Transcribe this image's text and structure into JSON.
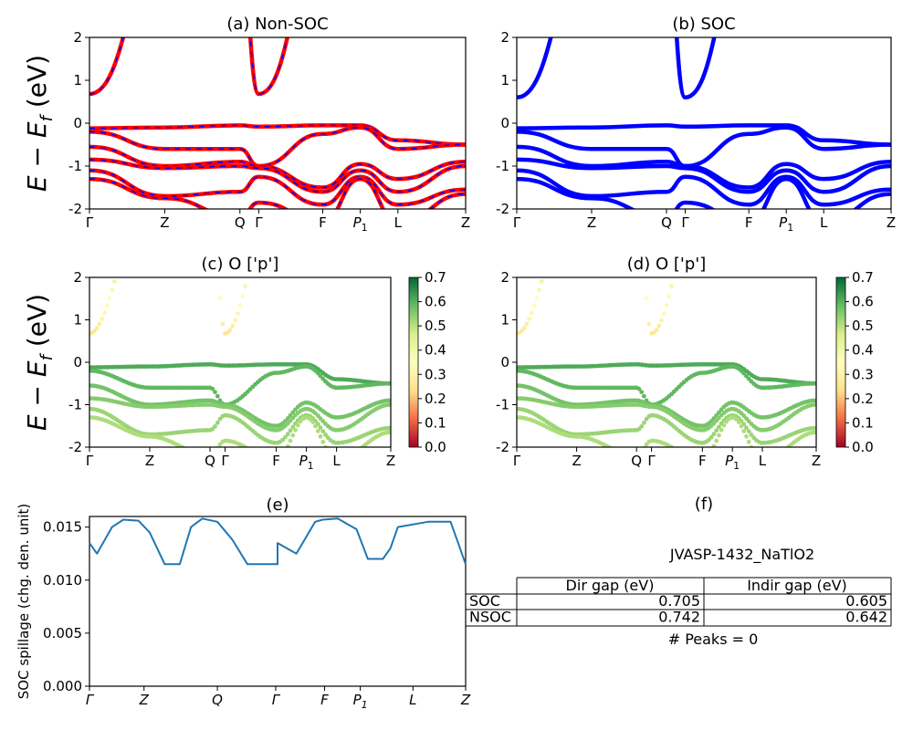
{
  "band_labels": [
    "Γ",
    "Z",
    "Q",
    "Γ",
    "F",
    "P1",
    "L",
    "Z"
  ],
  "colorbar": {
    "ticks": [
      "0.0",
      "0.1",
      "0.2",
      "0.3",
      "0.4",
      "0.5",
      "0.6",
      "0.7"
    ],
    "colormap": "RdYlGn",
    "colors": [
      "#a50026",
      "#f46d43",
      "#fee08b",
      "#ffffbf",
      "#d9ef8b",
      "#66bd63",
      "#006837"
    ]
  },
  "ylabel_bands": "E − E_f (eV)",
  "chart_data": [
    {
      "type": "line",
      "title": "(a) Non-SOC",
      "ylabel": "E − E_f (eV)",
      "ylim": [
        -2,
        2
      ],
      "yticks": [
        -2,
        -1,
        0,
        1,
        2
      ],
      "kpath": [
        "Γ",
        "Z",
        "Q",
        "Γ",
        "F",
        "P1",
        "L",
        "Z"
      ],
      "kpath_positions": [
        0,
        0.2,
        0.4,
        0.45,
        0.62,
        0.72,
        0.82,
        1.0
      ],
      "colors": {
        "non_soc": "#ff0000",
        "soc_overlay": "#0000ff"
      },
      "series": [
        {
          "values_at_path_points": [
            0.68,
            4.0,
            4.0,
            4.0,
            4.0,
            4.0,
            4.0,
            4.0
          ]
        },
        {
          "values_at_path_points": [
            4.0,
            4.0,
            4.0,
            0.68,
            4.0,
            4.0,
            4.0,
            4.0
          ]
        },
        {
          "values_at_path_points": [
            -0.12,
            -0.1,
            -0.05,
            -0.08,
            -0.05,
            -0.05,
            -0.4,
            -0.5
          ]
        },
        {
          "values_at_path_points": [
            -0.2,
            -0.6,
            -0.6,
            -1.0,
            -0.25,
            -0.1,
            -0.6,
            -0.5
          ]
        },
        {
          "values_at_path_points": [
            -0.55,
            -1.0,
            -0.9,
            -1.0,
            -1.5,
            -0.95,
            -1.3,
            -0.9
          ]
        },
        {
          "values_at_path_points": [
            -0.85,
            -1.05,
            -1.0,
            -1.05,
            -1.6,
            -1.1,
            -1.6,
            -1.0
          ]
        },
        {
          "values_at_path_points": [
            -1.1,
            -1.7,
            -1.6,
            -1.25,
            -1.9,
            -1.25,
            -1.9,
            -1.55
          ]
        },
        {
          "values_at_path_points": [
            -1.3,
            -1.75,
            -2.2,
            -1.85,
            -2.3,
            -1.3,
            -2.3,
            -1.65
          ]
        }
      ]
    },
    {
      "type": "line",
      "title": "(b) SOC",
      "ylim": [
        -2,
        2
      ],
      "yticks": [
        -2,
        -1,
        0,
        1,
        2
      ],
      "kpath": [
        "Γ",
        "Z",
        "Q",
        "Γ",
        "F",
        "P1",
        "L",
        "Z"
      ],
      "color": "#0000ff",
      "series": [
        {
          "values_at_path_points": [
            0.6,
            4.0,
            4.0,
            4.0,
            4.0,
            4.0,
            4.0,
            4.0
          ]
        },
        {
          "values_at_path_points": [
            4.0,
            4.0,
            4.0,
            0.6,
            4.0,
            4.0,
            4.0,
            4.0
          ]
        },
        {
          "values_at_path_points": [
            -0.12,
            -0.1,
            -0.05,
            -0.08,
            -0.05,
            -0.05,
            -0.4,
            -0.5
          ]
        },
        {
          "values_at_path_points": [
            -0.2,
            -0.6,
            -0.6,
            -1.0,
            -0.25,
            -0.1,
            -0.6,
            -0.5
          ]
        },
        {
          "values_at_path_points": [
            -0.55,
            -1.0,
            -0.9,
            -1.0,
            -1.5,
            -0.95,
            -1.3,
            -0.9
          ]
        },
        {
          "values_at_path_points": [
            -0.85,
            -1.05,
            -1.0,
            -1.05,
            -1.6,
            -1.1,
            -1.6,
            -1.0
          ]
        },
        {
          "values_at_path_points": [
            -1.1,
            -1.7,
            -1.6,
            -1.25,
            -1.9,
            -1.25,
            -1.9,
            -1.55
          ]
        },
        {
          "values_at_path_points": [
            -1.3,
            -1.75,
            -2.2,
            -1.85,
            -2.3,
            -1.3,
            -2.3,
            -1.65
          ]
        }
      ]
    },
    {
      "type": "scatter",
      "title": "(c)  O ['p']",
      "ylabel": "E − E_f (eV)",
      "ylim": [
        -2,
        2
      ],
      "colorbar_range": [
        0.0,
        0.7
      ],
      "description_by_energy": {
        "conduction_bands_weight": 0.25,
        "valence_bands_weight": 0.65
      }
    },
    {
      "type": "scatter",
      "title": "(d) O ['p']",
      "ylim": [
        -2,
        2
      ],
      "colorbar_range": [
        0.0,
        0.7
      ],
      "description_by_energy": {
        "conduction_bands_weight": 0.25,
        "valence_bands_weight": 0.65
      }
    },
    {
      "type": "line",
      "title": "(e)",
      "ylabel": "SOC spillage (chg. den. unit)",
      "ylim": [
        0,
        0.016
      ],
      "yticks": [
        "0.000",
        "0.005",
        "0.010",
        "0.015"
      ],
      "xticks": [
        "Γ",
        "Z",
        "Q",
        "Γ",
        "F",
        "P1",
        "L",
        "Z"
      ],
      "color": "#1f77b4",
      "x": [
        0,
        0.02,
        0.06,
        0.09,
        0.13,
        0.16,
        0.2,
        0.24,
        0.27,
        0.3,
        0.34,
        0.38,
        0.42,
        0.46,
        0.5,
        0.5,
        0.55,
        0.6,
        0.62,
        0.66,
        0.71,
        0.74,
        0.78,
        0.8,
        0.82,
        0.9,
        0.96,
        0.98,
        1.0
      ],
      "values": [
        0.0135,
        0.0125,
        0.015,
        0.0157,
        0.0156,
        0.0145,
        0.0115,
        0.0115,
        0.015,
        0.0158,
        0.0155,
        0.0138,
        0.0115,
        0.0115,
        0.0115,
        0.0135,
        0.0125,
        0.0155,
        0.0157,
        0.0158,
        0.0148,
        0.012,
        0.012,
        0.013,
        0.015,
        0.0155,
        0.0155,
        0.0135,
        0.0115
      ]
    }
  ],
  "table": {
    "title": "(f)",
    "subtitle": "JVASP-1432_NaTlO2",
    "columns": [
      "",
      "Dir gap (eV)",
      "Indir gap (eV)"
    ],
    "rows": [
      {
        "label": "SOC",
        "dir": "0.705",
        "indir": "0.605"
      },
      {
        "label": "NSOC",
        "dir": "0.742",
        "indir": "0.642"
      }
    ],
    "footnote": "# Peaks = 0"
  }
}
